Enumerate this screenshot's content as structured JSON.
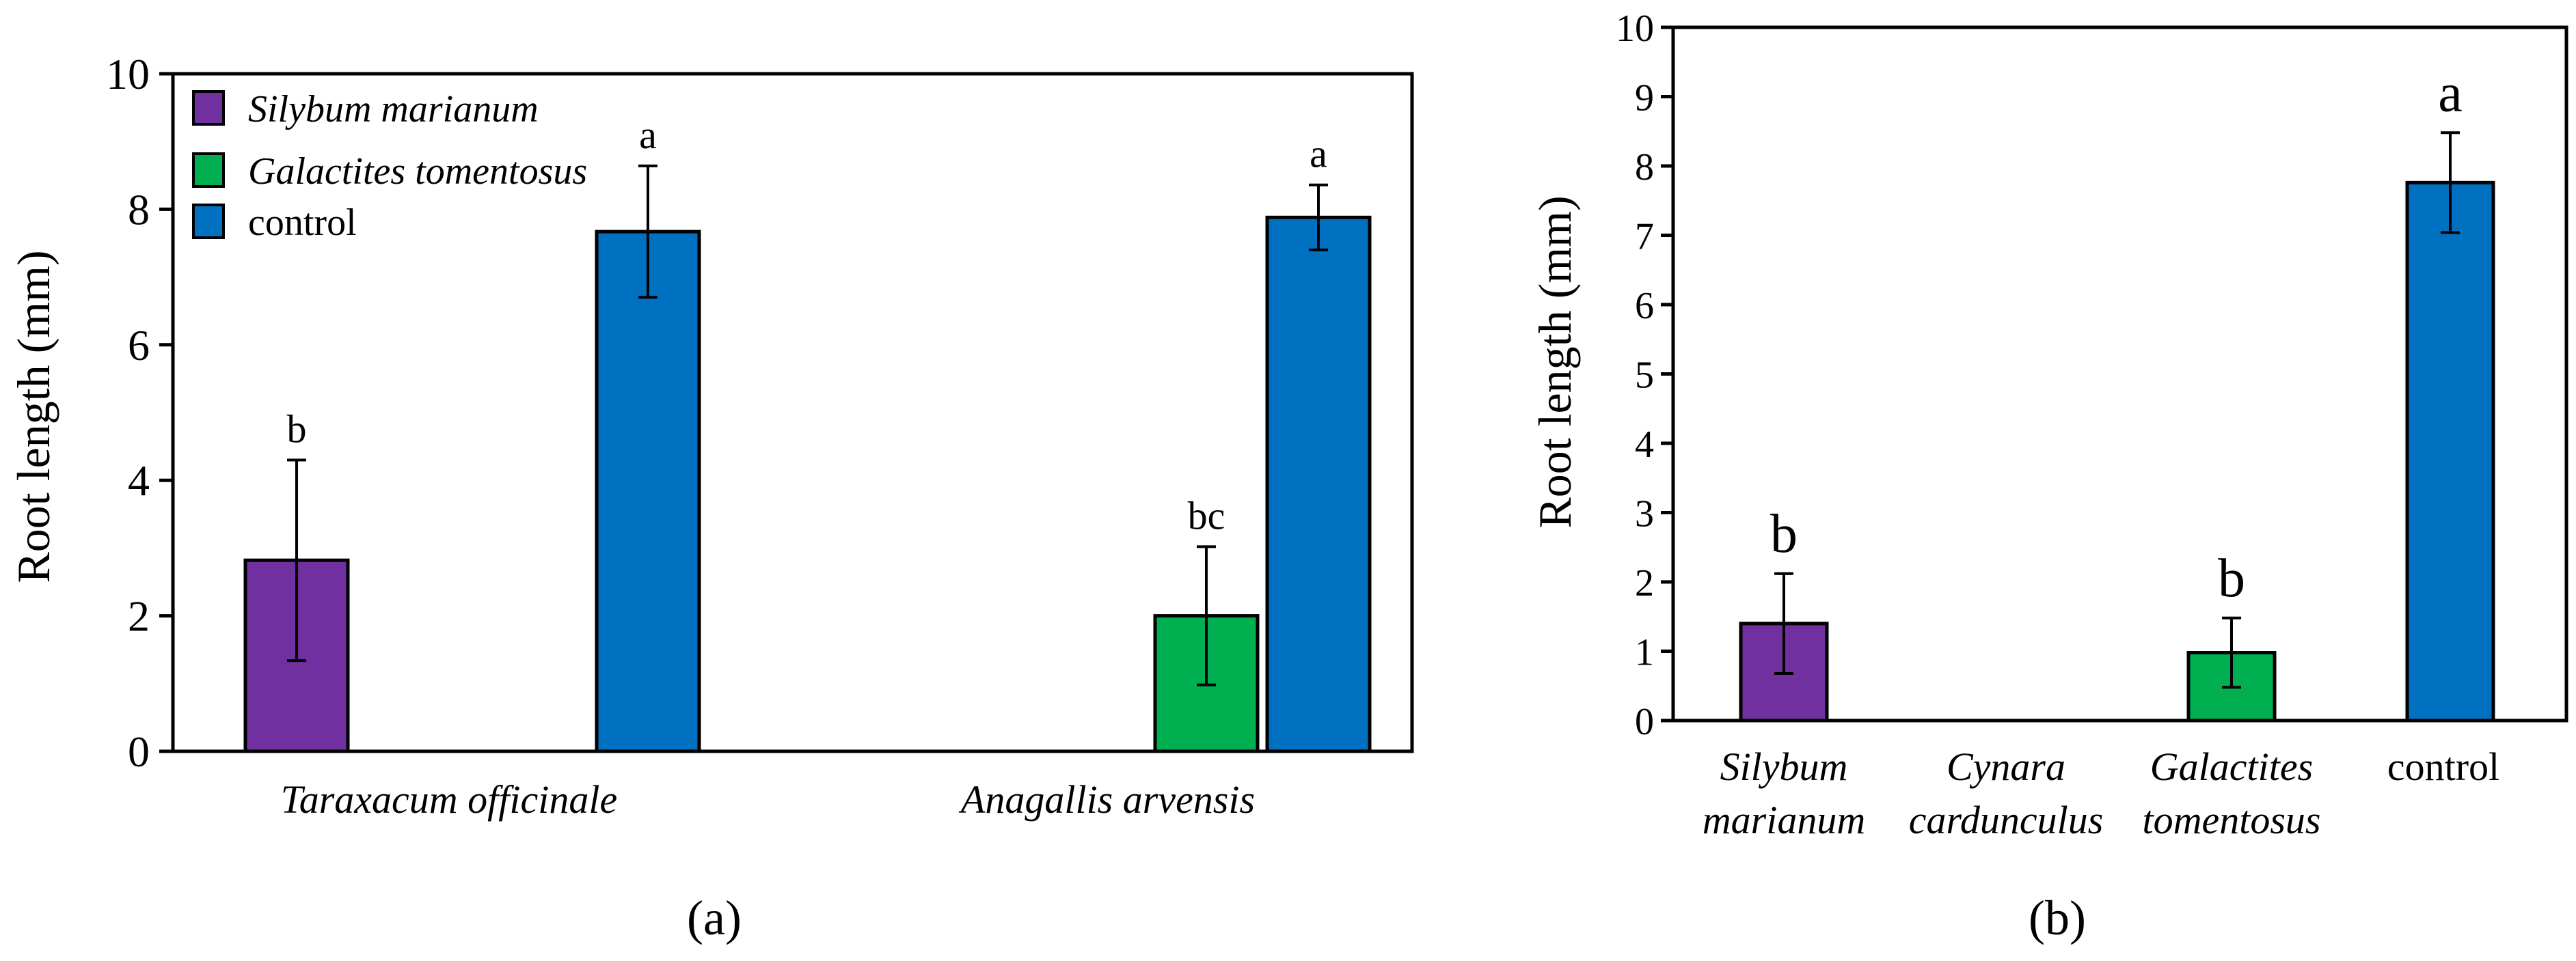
{
  "chart_data": [
    {
      "panel_label": "(a)",
      "type": "bar",
      "title": "",
      "ylabel": "Root length (mm)",
      "xlabel": "",
      "ylim": [
        0,
        10
      ],
      "yticks": [
        "0",
        "2",
        "4",
        "6",
        "8",
        "10"
      ],
      "categories": [
        "Taraxacum officinale",
        "Anagallis arvensis"
      ],
      "legend": {
        "placement": "top-left",
        "entries": [
          "Silybum marianum",
          "Galactites tomentosus",
          "control"
        ]
      },
      "series": [
        {
          "name": "Silybum marianum",
          "color": "#7030a0",
          "values": [
            2.82,
            null
          ],
          "errors": [
            1.48,
            null
          ],
          "letters": [
            "b",
            ""
          ]
        },
        {
          "name": "Galactites tomentosus",
          "color": "#00b050",
          "values": [
            null,
            2.0
          ],
          "errors": [
            null,
            1.02
          ],
          "letters": [
            "",
            "bc"
          ]
        },
        {
          "name": "control",
          "color": "#0070c0",
          "values": [
            7.67,
            7.88
          ],
          "errors": [
            0.97,
            0.48
          ],
          "letters": [
            "a",
            "a"
          ]
        }
      ]
    },
    {
      "panel_label": "(b)",
      "type": "bar",
      "title": "",
      "ylabel": "Root length (mm)",
      "xlabel": "",
      "ylim": [
        0,
        10
      ],
      "yticks": [
        "0",
        "1",
        "2",
        "3",
        "4",
        "5",
        "6",
        "7",
        "8",
        "9",
        "10"
      ],
      "categories": [
        [
          "Silybum",
          "marianum"
        ],
        [
          "Cynara",
          "cardunculus"
        ],
        [
          "Galactites",
          "tomentosus"
        ],
        [
          "control"
        ]
      ],
      "colors": [
        "#7030a0",
        null,
        "#00b050",
        "#0070c0"
      ],
      "values": [
        1.4,
        0,
        0.98,
        7.76
      ],
      "errors": [
        0.72,
        0,
        0.5,
        0.72
      ],
      "letters": [
        "b",
        "",
        "b",
        "a"
      ]
    }
  ]
}
